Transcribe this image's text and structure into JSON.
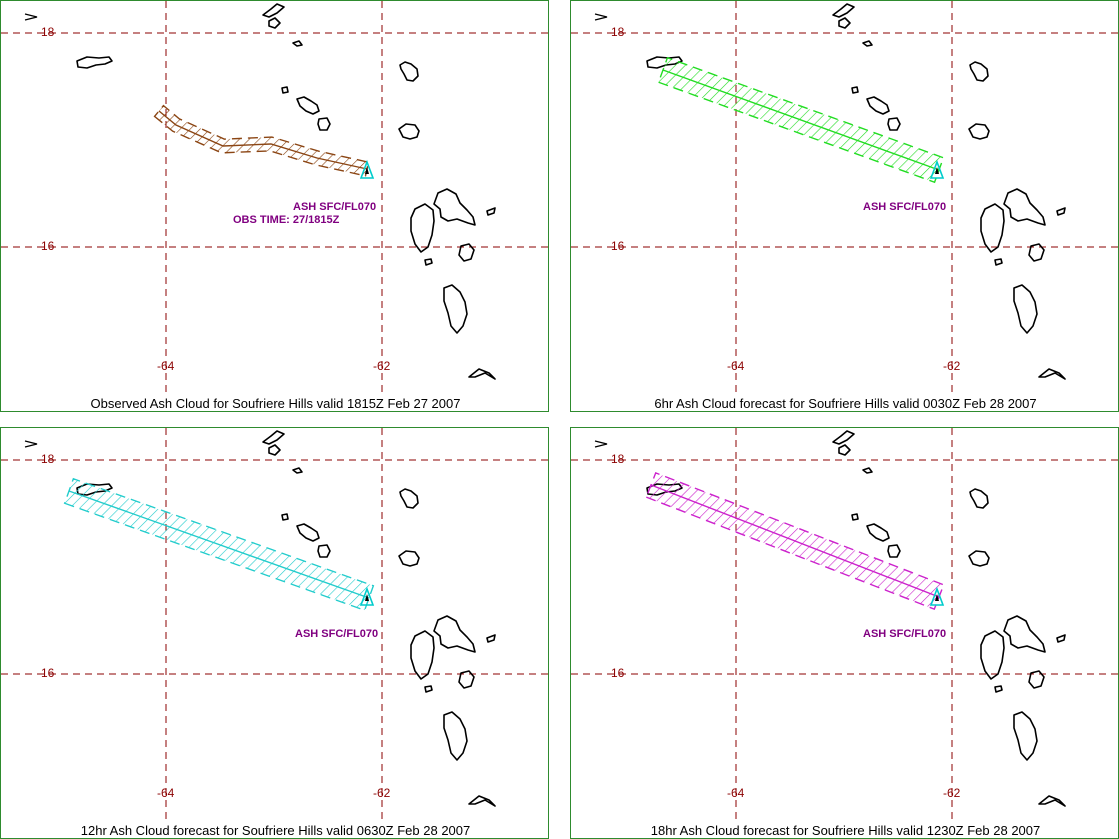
{
  "lat_labels": [
    "18",
    "16"
  ],
  "lon_labels": [
    "-64",
    "-62"
  ],
  "panels": [
    {
      "caption": "Observed Ash Cloud for Soufriere  Hills valid 1815Z Feb 27 2007",
      "ash_label": "ASH SFC/FL070",
      "obs_label": "OBS TIME: 27/1815Z",
      "cloud_color": "#8b4513"
    },
    {
      "caption": "6hr Ash Cloud forecast for Soufriere  Hills valid 0030Z Feb 28 2007",
      "ash_label": "ASH SFC/FL070",
      "cloud_color": "#22dd22"
    },
    {
      "caption": "12hr Ash Cloud forecast for Soufriere  Hills valid 0630Z Feb 28 2007",
      "ash_label": "ASH SFC/FL070",
      "cloud_color": "#22cccc"
    },
    {
      "caption": "18hr Ash Cloud forecast for Soufriere  Hills valid 1230Z Feb 28 2007",
      "ash_label": "ASH SFC/FL070",
      "cloud_color": "#cc22cc"
    }
  ],
  "colors": {
    "grid": "#8b0000",
    "frame": "#2e8b2e",
    "label": "#800080",
    "volcano": "#00cccc",
    "land": "#000000"
  },
  "icons": {
    "volcano": "triangle-volcano-icon"
  }
}
